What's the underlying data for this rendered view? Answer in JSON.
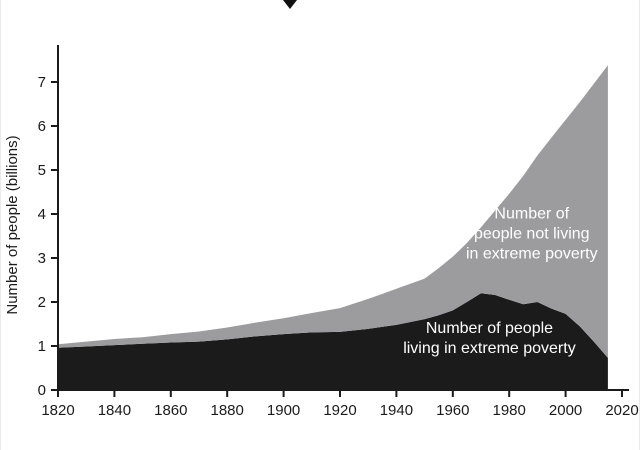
{
  "chart_data": {
    "type": "area",
    "stacked": true,
    "title": "",
    "xlabel": "",
    "ylabel": "Number of people (billions)",
    "background": "#ffffff",
    "axis_color": "#1b1b1b",
    "xlim": [
      1820,
      2020
    ],
    "ylim": [
      0,
      7.5
    ],
    "xticks": [
      1820,
      1840,
      1860,
      1880,
      1900,
      1920,
      1940,
      1960,
      1980,
      2000,
      2020
    ],
    "yticks": [
      0,
      1,
      2,
      3,
      4,
      5,
      6,
      7
    ],
    "x": [
      1820,
      1830,
      1840,
      1850,
      1860,
      1870,
      1880,
      1890,
      1900,
      1910,
      1920,
      1930,
      1940,
      1950,
      1955,
      1960,
      1965,
      1970,
      1975,
      1980,
      1985,
      1990,
      1995,
      2000,
      2005,
      2010,
      2015
    ],
    "series": [
      {
        "id": "extreme-poverty",
        "name": "Number of people living in extreme poverty",
        "color": "#1b1b1b",
        "values": [
          0.96,
          0.99,
          1.02,
          1.05,
          1.08,
          1.1,
          1.15,
          1.22,
          1.27,
          1.31,
          1.32,
          1.39,
          1.48,
          1.61,
          1.7,
          1.81,
          2.0,
          2.2,
          2.16,
          2.05,
          1.95,
          2.0,
          1.85,
          1.73,
          1.45,
          1.1,
          0.73
        ]
      },
      {
        "id": "not-extreme-poverty",
        "name": "Number of people not living in extreme poverty",
        "color": "#9c9c9e",
        "values": [
          0.08,
          0.11,
          0.14,
          0.15,
          0.19,
          0.23,
          0.27,
          0.31,
          0.36,
          0.44,
          0.54,
          0.68,
          0.82,
          0.92,
          1.07,
          1.22,
          1.34,
          1.5,
          1.92,
          2.41,
          2.92,
          3.33,
          3.89,
          4.41,
          5.09,
          5.86,
          6.65
        ]
      }
    ],
    "annotations": [
      {
        "id": "not-poverty-label",
        "lines": [
          "Number of",
          "people not living",
          "in extreme poverty"
        ],
        "x": 1988,
        "y": 3.9,
        "color": "#ffffff"
      },
      {
        "id": "poverty-label",
        "lines": [
          "Number of people",
          "living in extreme poverty"
        ],
        "x": 1973,
        "y": 1.3,
        "color": "#ffffff"
      }
    ]
  }
}
